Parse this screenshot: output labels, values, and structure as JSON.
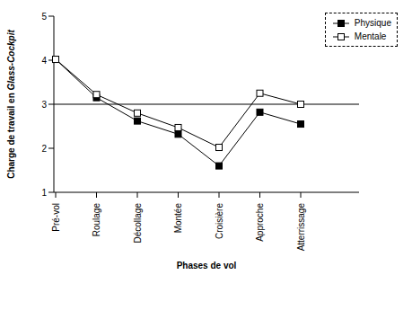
{
  "chart_data": {
    "type": "line",
    "x_label": "Phases de vol",
    "y_label": "Charge de travail en Glass-Cockpit",
    "categories": [
      "Pré-vol",
      "Roulage",
      "Décollage",
      "Montée",
      "Croisière",
      "Approche",
      "Atterrissage"
    ],
    "series": [
      {
        "name": "Physique",
        "color": "#000000",
        "marker": "square",
        "values": [
          4.02,
          3.15,
          2.62,
          2.32,
          1.6,
          2.82,
          2.55
        ]
      },
      {
        "name": "Mentale",
        "color": "#000000",
        "marker": "open_square",
        "values": [
          4.02,
          3.22,
          2.8,
          2.47,
          2.02,
          3.25,
          3.0
        ]
      }
    ],
    "ylim": [
      1,
      5
    ],
    "yticks": [
      1,
      2,
      3,
      4,
      5
    ],
    "reference_line": 3,
    "grid": false,
    "legend": "top-right"
  }
}
